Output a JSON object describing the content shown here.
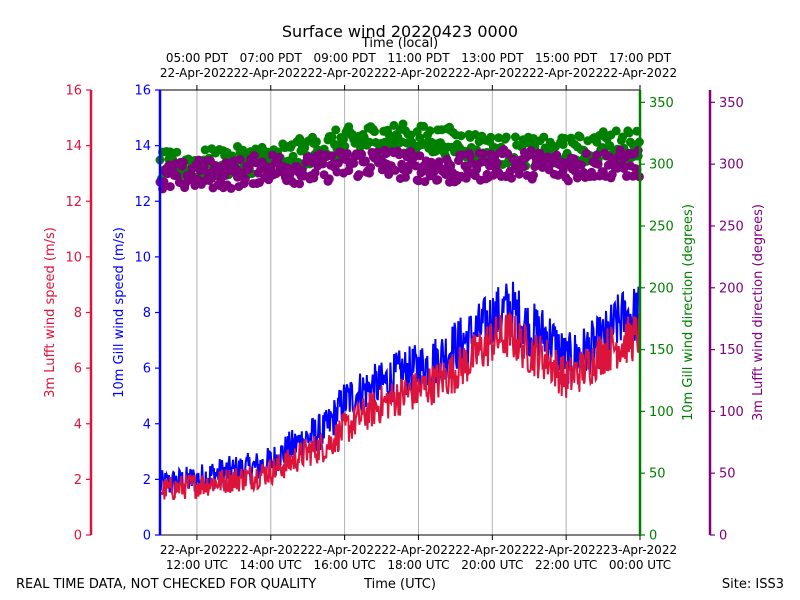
{
  "chart_data": {
    "type": "line+scatter",
    "title": "Surface wind 20220423 0000",
    "top_axis_label": "Time (local)",
    "bottom_axis_label": "Time (UTC)",
    "footer_left": "REAL TIME DATA, NOT CHECKED FOR QUALITY",
    "footer_right": "Site: ISS3",
    "x_range_utc_hours": [
      11.0,
      24.0
    ],
    "utc_ticks": [
      {
        "hour": 12,
        "line1": "22-Apr-2022",
        "line2": "12:00 UTC"
      },
      {
        "hour": 14,
        "line1": "22-Apr-2022",
        "line2": "14:00 UTC"
      },
      {
        "hour": 16,
        "line1": "22-Apr-2022",
        "line2": "16:00 UTC"
      },
      {
        "hour": 18,
        "line1": "22-Apr-2022",
        "line2": "18:00 UTC"
      },
      {
        "hour": 20,
        "line1": "22-Apr-2022",
        "line2": "20:00 UTC"
      },
      {
        "hour": 22,
        "line1": "22-Apr-2022",
        "line2": "22:00 UTC"
      },
      {
        "hour": 24,
        "line1": "23-Apr-2022",
        "line2": "00:00 UTC"
      }
    ],
    "local_ticks": [
      {
        "hour": 12,
        "line1": "05:00 PDT",
        "line2": "22-Apr-2022"
      },
      {
        "hour": 14,
        "line1": "07:00 PDT",
        "line2": "22-Apr-2022"
      },
      {
        "hour": 16,
        "line1": "09:00 PDT",
        "line2": "22-Apr-2022"
      },
      {
        "hour": 18,
        "line1": "11:00 PDT",
        "line2": "22-Apr-2022"
      },
      {
        "hour": 20,
        "line1": "13:00 PDT",
        "line2": "22-Apr-2022"
      },
      {
        "hour": 22,
        "line1": "15:00 PDT",
        "line2": "22-Apr-2022"
      },
      {
        "hour": 24,
        "line1": "17:00 PDT",
        "line2": "22-Apr-2022"
      }
    ],
    "axes": {
      "lufft_speed": {
        "label": "3m Lufft wind speed (m/s)",
        "range": [
          0,
          16
        ],
        "ticks": [
          0,
          2,
          4,
          6,
          8,
          10,
          12,
          14,
          16
        ],
        "color": "#dc143c"
      },
      "gill_speed": {
        "label": "10m Gill wind speed (m/s)",
        "range": [
          0,
          16
        ],
        "ticks": [
          0,
          2,
          4,
          6,
          8,
          10,
          12,
          14,
          16
        ],
        "color": "#0000ff"
      },
      "gill_dir": {
        "label": "10m Gill wind direction (degrees)",
        "range": [
          0,
          360
        ],
        "ticks": [
          0,
          50,
          100,
          150,
          200,
          250,
          300,
          350
        ],
        "color": "#008000"
      },
      "lufft_dir": {
        "label": "3m Lufft wind direction (degrees)",
        "range": [
          0,
          360
        ],
        "ticks": [
          0,
          50,
          100,
          150,
          200,
          250,
          300,
          350
        ],
        "color": "#800080"
      }
    },
    "series": [
      {
        "name": "10m Gill wind speed",
        "kind": "line",
        "axis": "gill_speed",
        "color": "#0000ff",
        "x": [
          11.0,
          11.5,
          12.0,
          12.5,
          13.0,
          13.5,
          14.0,
          14.5,
          15.0,
          15.5,
          16.0,
          16.5,
          17.0,
          17.5,
          18.0,
          18.5,
          19.0,
          19.5,
          20.0,
          20.5,
          21.0,
          21.5,
          22.0,
          22.5,
          23.0,
          23.5,
          24.0
        ],
        "y": [
          1.8,
          1.9,
          2.0,
          2.2,
          2.3,
          2.4,
          2.6,
          3.1,
          3.5,
          3.8,
          4.8,
          5.2,
          5.4,
          5.8,
          6.0,
          6.3,
          6.8,
          7.2,
          7.8,
          8.2,
          7.4,
          7.2,
          6.3,
          6.6,
          7.0,
          7.8,
          8.0
        ],
        "noise_amplitude": 0.9
      },
      {
        "name": "3m Lufft wind speed",
        "kind": "line",
        "axis": "lufft_speed",
        "color": "#dc143c",
        "x": [
          11.0,
          11.5,
          12.0,
          12.5,
          13.0,
          13.5,
          14.0,
          14.5,
          15.0,
          15.5,
          16.0,
          16.5,
          17.0,
          17.5,
          18.0,
          18.5,
          19.0,
          19.5,
          20.0,
          20.5,
          21.0,
          21.5,
          22.0,
          22.5,
          23.0,
          23.5,
          24.0
        ],
        "y": [
          1.6,
          1.7,
          1.8,
          1.9,
          2.0,
          2.1,
          2.3,
          2.6,
          3.0,
          3.2,
          3.8,
          4.3,
          4.7,
          5.0,
          5.2,
          5.5,
          5.9,
          6.4,
          7.0,
          7.2,
          6.6,
          6.3,
          5.6,
          6.0,
          6.6,
          6.9,
          7.2
        ],
        "noise_amplitude": 0.8
      },
      {
        "name": "10m Gill wind direction",
        "kind": "scatter",
        "axis": "gill_dir",
        "color": "#008000",
        "x": [
          11.0,
          12.0,
          13.0,
          14.0,
          15.0,
          16.0,
          17.0,
          18.0,
          19.0,
          20.0,
          21.0,
          22.0,
          23.0,
          24.0
        ],
        "y": [
          298,
          300,
          302,
          305,
          310,
          318,
          322,
          320,
          318,
          312,
          310,
          310,
          315,
          318
        ],
        "spread": 12
      },
      {
        "name": "3m Lufft wind direction",
        "kind": "scatter",
        "axis": "lufft_dir",
        "color": "#800080",
        "x": [
          11.0,
          12.0,
          13.0,
          14.0,
          15.0,
          16.0,
          17.0,
          18.0,
          19.0,
          20.0,
          21.0,
          22.0,
          23.0,
          24.0
        ],
        "y": [
          288,
          292,
          292,
          298,
          295,
          300,
          302,
          298,
          295,
          300,
          300,
          298,
          300,
          300
        ],
        "spread": 12
      }
    ]
  }
}
